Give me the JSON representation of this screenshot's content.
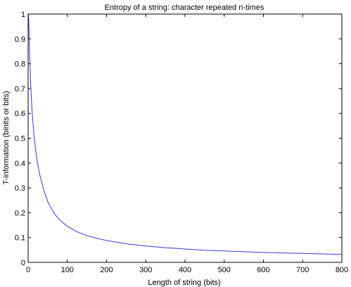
{
  "chart_data": {
    "type": "line",
    "title": "Entropy of a string: character repeated n-times",
    "xlabel": "Length of string (bits)",
    "ylabel": "T-information (binits or bits)",
    "xlim": [
      0,
      800
    ],
    "ylim": [
      0,
      1
    ],
    "xticks": [
      0,
      100,
      200,
      300,
      400,
      500,
      600,
      700,
      800
    ],
    "yticks": [
      0,
      0.1,
      0.2,
      0.3,
      0.4,
      0.5,
      0.6,
      0.7,
      0.8,
      0.9,
      1
    ],
    "xtick_labels": [
      "0",
      "100",
      "200",
      "300",
      "400",
      "500",
      "600",
      "700",
      "800"
    ],
    "ytick_labels": [
      "0",
      "0.1",
      "0.2",
      "0.3",
      "0.4",
      "0.5",
      "0.6",
      "0.7",
      "0.8",
      "0.9",
      "1"
    ],
    "grid": false,
    "series": [
      {
        "color": "#3a3acc",
        "x": [
          1,
          2,
          3,
          4,
          5,
          7,
          10,
          15,
          20,
          25,
          30,
          40,
          50,
          60,
          70,
          80,
          100,
          125,
          150,
          175,
          200,
          250,
          300,
          350,
          400,
          450,
          500,
          550,
          600,
          650,
          700,
          750,
          800
        ],
        "y": [
          1.0,
          0.95,
          0.89,
          0.83,
          0.78,
          0.7,
          0.61,
          0.51,
          0.44,
          0.39,
          0.35,
          0.29,
          0.245,
          0.215,
          0.19,
          0.172,
          0.145,
          0.123,
          0.108,
          0.097,
          0.088,
          0.075,
          0.066,
          0.059,
          0.054,
          0.049,
          0.046,
          0.043,
          0.04,
          0.038,
          0.036,
          0.034,
          0.032
        ]
      }
    ]
  }
}
